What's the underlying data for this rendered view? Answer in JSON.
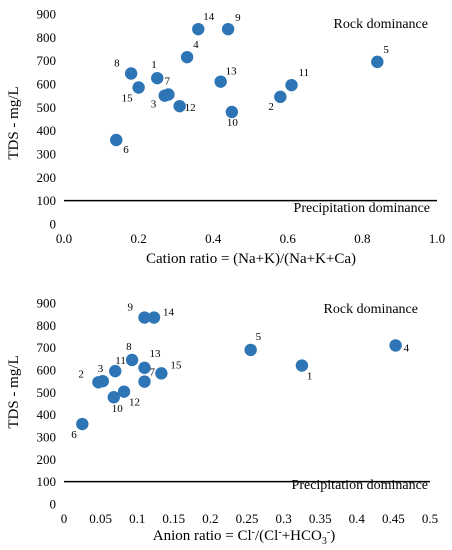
{
  "chart_data": [
    {
      "type": "scatter",
      "title": "",
      "xlabel": "Cation ratio = (Na+K)/(Na+K+Ca)",
      "ylabel": "TDS - mg/L",
      "xlim": [
        0.0,
        1.0
      ],
      "ylim": [
        0,
        900
      ],
      "x_ticks": [
        "0.0",
        "0.2",
        "0.4",
        "0.6",
        "0.8",
        "1.0"
      ],
      "y_ticks": [
        "0",
        "100",
        "200",
        "300",
        "400",
        "500",
        "600",
        "700",
        "800",
        "900"
      ],
      "grid": false,
      "marker_color": "#2E75B6",
      "annotations": {
        "upper_region": "Rock dominance",
        "lower_region": "Precipitation dominance",
        "boundary_y": 100
      },
      "points": [
        {
          "label": "1",
          "x": 0.25,
          "y": 625
        },
        {
          "label": "2",
          "x": 0.58,
          "y": 545
        },
        {
          "label": "3",
          "x": 0.27,
          "y": 550
        },
        {
          "label": "4",
          "x": 0.33,
          "y": 715
        },
        {
          "label": "5",
          "x": 0.84,
          "y": 695
        },
        {
          "label": "6",
          "x": 0.14,
          "y": 360
        },
        {
          "label": "7",
          "x": 0.28,
          "y": 555
        },
        {
          "label": "8",
          "x": 0.18,
          "y": 645
        },
        {
          "label": "9",
          "x": 0.44,
          "y": 835
        },
        {
          "label": "10",
          "x": 0.45,
          "y": 480
        },
        {
          "label": "11",
          "x": 0.61,
          "y": 595
        },
        {
          "label": "12",
          "x": 0.31,
          "y": 505
        },
        {
          "label": "13",
          "x": 0.42,
          "y": 610
        },
        {
          "label": "14",
          "x": 0.36,
          "y": 835
        },
        {
          "label": "15",
          "x": 0.2,
          "y": 585
        }
      ]
    },
    {
      "type": "scatter",
      "title": "",
      "xlabel": "Anion ratio = Cl⁻/(Cl⁻+HCO₃⁻)",
      "ylabel": "TDS - mg/L",
      "xlim": [
        0.0,
        0.5
      ],
      "ylim": [
        0,
        900
      ],
      "x_ticks": [
        "0",
        "0.05",
        "0.1",
        "0.15",
        "0.2",
        "0.25",
        "0.3",
        "0.35",
        "0.4",
        "0.45",
        "0.5"
      ],
      "y_ticks": [
        "0",
        "100",
        "200",
        "300",
        "400",
        "500",
        "600",
        "700",
        "800",
        "900"
      ],
      "grid": false,
      "marker_color": "#2E75B6",
      "annotations": {
        "upper_region": "Rock dominance",
        "lower_region": "Precipitation dominance",
        "boundary_y": 100
      },
      "points": [
        {
          "label": "1",
          "x": 0.325,
          "y": 620
        },
        {
          "label": "2",
          "x": 0.047,
          "y": 545
        },
        {
          "label": "3",
          "x": 0.053,
          "y": 550
        },
        {
          "label": "4",
          "x": 0.453,
          "y": 710
        },
        {
          "label": "5",
          "x": 0.255,
          "y": 690
        },
        {
          "label": "6",
          "x": 0.025,
          "y": 358
        },
        {
          "label": "7",
          "x": 0.11,
          "y": 548
        },
        {
          "label": "8",
          "x": 0.093,
          "y": 645
        },
        {
          "label": "9",
          "x": 0.11,
          "y": 835
        },
        {
          "label": "10",
          "x": 0.068,
          "y": 478
        },
        {
          "label": "11",
          "x": 0.07,
          "y": 595
        },
        {
          "label": "12",
          "x": 0.082,
          "y": 503
        },
        {
          "label": "13",
          "x": 0.11,
          "y": 610
        },
        {
          "label": "14",
          "x": 0.123,
          "y": 835
        },
        {
          "label": "15",
          "x": 0.133,
          "y": 585
        }
      ]
    }
  ]
}
